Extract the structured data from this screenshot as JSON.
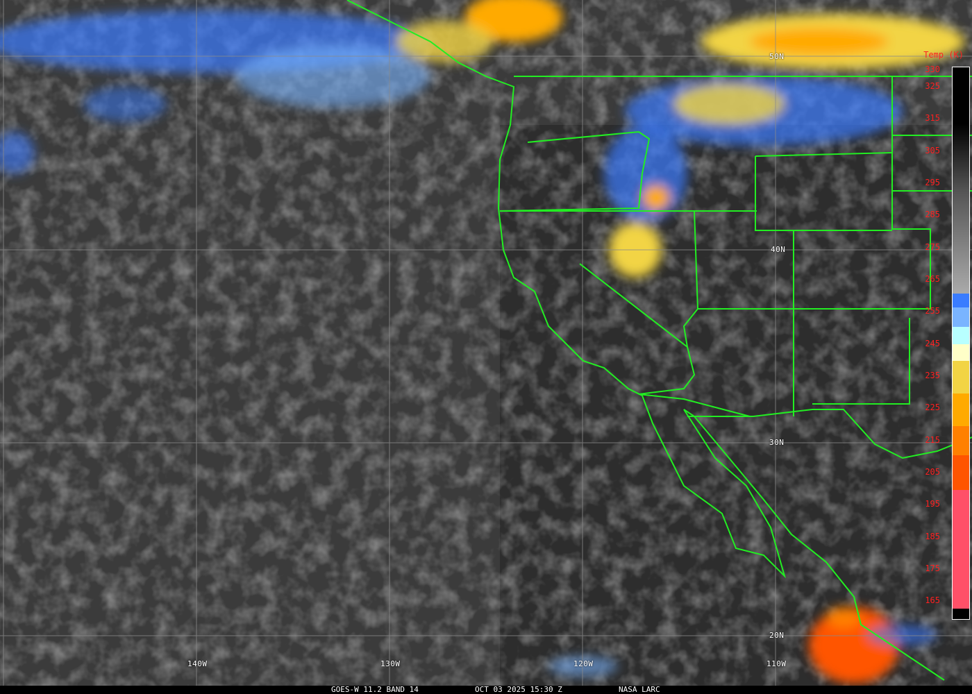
{
  "image": {
    "type": "satellite infrared imagery",
    "footer": {
      "satellite_band": "GOES-W 11.2 BAND 14",
      "datetime": "OCT 03 2025 15:30 Z",
      "credit": "NASA LARC"
    },
    "latitude_labels": [
      "50N",
      "40N",
      "30N",
      "20N"
    ],
    "longitude_labels": [
      "140W",
      "130W",
      "120W",
      "110W"
    ],
    "colorbar": {
      "title": "Temp (K)",
      "tick_labels": [
        "330",
        "325",
        "315",
        "305",
        "295",
        "285",
        "275",
        "265",
        "255",
        "245",
        "235",
        "225",
        "215",
        "205",
        "195",
        "185",
        "175",
        "165"
      ],
      "label_color": "#ff2020",
      "segments": [
        {
          "from": 330,
          "to": 258,
          "color": "gradient black-to-gray"
        },
        {
          "from": 258,
          "to": 254,
          "color": "#3a7cff"
        },
        {
          "from": 254,
          "to": 250,
          "color": "#7ab4ff"
        },
        {
          "from": 250,
          "to": 242,
          "color": "#b8ffff"
        },
        {
          "from": 242,
          "to": 238,
          "color": "#ffffc8"
        },
        {
          "from": 238,
          "to": 228,
          "color": "#f2d444"
        },
        {
          "from": 228,
          "to": 218,
          "color": "#ffaa00"
        },
        {
          "from": 218,
          "to": 209,
          "color": "#ff8000"
        },
        {
          "from": 209,
          "to": 198,
          "color": "#ff5500"
        },
        {
          "from": 198,
          "to": 163,
          "color": "#ff5068"
        }
      ]
    },
    "boundary_color": "#22ee22",
    "grid_color": "#8a8a8a"
  }
}
